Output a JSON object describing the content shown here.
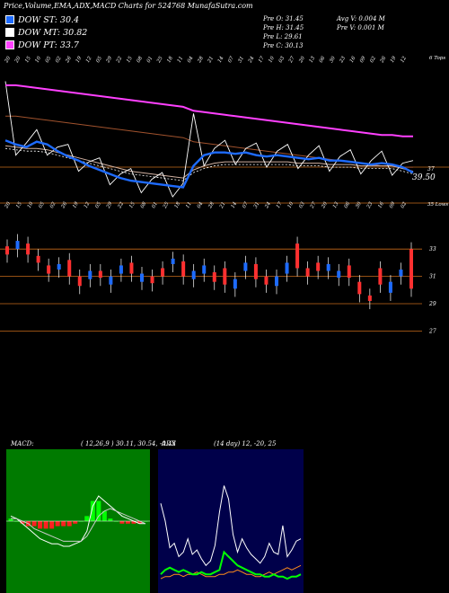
{
  "header": {
    "title": "Price,Volume,EMA,ADX,MACD Charts for 524768  MunafaSutra.com"
  },
  "legend": [
    {
      "label": "DOW ST: 30.4",
      "color": "#1e6bff"
    },
    {
      "label": "DOW MT: 30.82",
      "color": "#ffffff"
    },
    {
      "label": "DOW PT: 33.7",
      "color": "#ff40ff"
    }
  ],
  "info": {
    "prev_open": "Pre   O: 31.45",
    "prev_high": "Pre   H: 31.45",
    "prev_low": "Pre   L: 29.61",
    "prev_close": "Pre   C: 30.13",
    "avg_volume": "Avg V: 0.004  M",
    "prev_volume": "Pre   V: 0.001 M"
  },
  "colors": {
    "price": "#ffffff",
    "ema_short": "#1e6bff",
    "ema_long": "#ff40ff",
    "ema_mid": "#d0b0a0",
    "grid": "#c56a1a",
    "candle_up": "#1e6bff",
    "candle_down": "#ff3030",
    "macd_bg": "#007a00",
    "adx_bg": "#00004a",
    "adx_green": "#00ff00",
    "adx_orange": "#ff8c1a"
  },
  "chart_data": [
    {
      "type": "line",
      "name": "price-ema-panel",
      "top_tick_labels": [
        "20",
        "20",
        "15",
        "10",
        "05",
        "02",
        "26",
        "19",
        "12",
        "05",
        "29",
        "22",
        "15",
        "08",
        "01",
        "25",
        "18",
        "11",
        "04",
        "28",
        "21",
        "14",
        "07",
        "31",
        "24",
        "17",
        "10",
        "03",
        "27",
        "20",
        "13",
        "06",
        "30",
        "23",
        "16",
        "09",
        "02",
        "26",
        "19",
        "12"
      ],
      "bottom_tick_labels": [
        "20",
        "15",
        "10",
        "05",
        "02",
        "26",
        "19",
        "12",
        "05",
        "29",
        "22",
        "15",
        "08",
        "01",
        "25",
        "18",
        "11",
        "04",
        "28",
        "21",
        "14",
        "07",
        "31",
        "24",
        "17",
        "10",
        "03",
        "27",
        "20",
        "13",
        "06",
        "30",
        "23",
        "16",
        "09",
        "02"
      ],
      "corner_label_top": "6 Tops",
      "corner_label_bottom": "35 Lows",
      "last_price_label": "39.50",
      "right_tick_label": "37",
      "series": [
        {
          "name": "DOW ST",
          "values": [
            33.4,
            33.1,
            32.9,
            33.3,
            33.1,
            32.6,
            32.2,
            31.9,
            31.5,
            31.2,
            30.9,
            30.6,
            30.4,
            30.3,
            30.2,
            30.1,
            30.0,
            29.9,
            31.5,
            32.3,
            32.5,
            32.5,
            32.4,
            32.5,
            32.3,
            32.2,
            32.3,
            32.2,
            32.1,
            32.0,
            32.1,
            31.9,
            31.9,
            31.8,
            31.7,
            31.6,
            31.7,
            31.6,
            31.4,
            31.0
          ]
        },
        {
          "name": "DOW MT",
          "values": [
            33.0,
            32.9,
            32.8,
            32.8,
            32.7,
            32.5,
            32.3,
            32.1,
            31.9,
            31.7,
            31.5,
            31.3,
            31.1,
            31.0,
            30.9,
            30.8,
            30.7,
            30.6,
            31.2,
            31.5,
            31.7,
            31.8,
            31.8,
            31.8,
            31.8,
            31.8,
            31.8,
            31.8,
            31.7,
            31.7,
            31.7,
            31.6,
            31.6,
            31.6,
            31.5,
            31.5,
            31.5,
            31.5,
            31.3,
            31.1
          ]
        },
        {
          "name": "DOW PT",
          "values": [
            37.5,
            37.5,
            37.4,
            37.3,
            37.2,
            37.1,
            37.0,
            36.9,
            36.8,
            36.7,
            36.6,
            36.5,
            36.4,
            36.3,
            36.2,
            36.1,
            36.0,
            35.9,
            35.6,
            35.5,
            35.4,
            35.3,
            35.2,
            35.1,
            35.0,
            34.9,
            34.8,
            34.7,
            34.6,
            34.5,
            34.4,
            34.3,
            34.2,
            34.1,
            34.0,
            33.9,
            33.8,
            33.8,
            33.7,
            33.7
          ]
        }
      ]
    },
    {
      "type": "bar",
      "name": "candles-panel",
      "y_ticks": [
        "33",
        "31",
        "29",
        "27"
      ],
      "opens": [
        33.2,
        33.0,
        33.4,
        32.5,
        31.8,
        31.5,
        32.2,
        31.0,
        30.8,
        31.4,
        30.4,
        31.2,
        32.0,
        30.6,
        31.0,
        31.6,
        31.9,
        32.1,
        30.8,
        31.2,
        31.3,
        31.6,
        30.1,
        31.4,
        31.9,
        31.0,
        30.3,
        31.2,
        33.4,
        31.6,
        32.0,
        31.4,
        30.9,
        31.8,
        30.6,
        29.6,
        31.6,
        29.8,
        31.0,
        33.0
      ],
      "closes": [
        32.6,
        33.6,
        32.6,
        32.0,
        31.2,
        31.9,
        31.0,
        30.3,
        31.4,
        30.9,
        31.0,
        31.8,
        31.2,
        31.2,
        30.5,
        31.0,
        32.3,
        31.0,
        31.4,
        31.8,
        30.6,
        30.4,
        30.8,
        32.0,
        30.8,
        30.4,
        31.0,
        32.0,
        31.6,
        31.0,
        31.4,
        31.9,
        31.4,
        30.9,
        29.7,
        29.2,
        30.4,
        30.6,
        31.5,
        30.1
      ]
    },
    {
      "type": "line",
      "name": "macd-panel",
      "title": "MACD:",
      "params": "( 12,26,9 ) 30.11, 30.54, -0.43",
      "series": [
        {
          "name": "MACD",
          "values": [
            0.2,
            0.1,
            -0.1,
            -0.3,
            -0.5,
            -0.7,
            -0.8,
            -0.9,
            -0.9,
            -1.0,
            -1.0,
            -0.9,
            -0.8,
            -0.4,
            0.6,
            1.0,
            0.8,
            0.6,
            0.4,
            0.2,
            0.1,
            0.0,
            -0.1,
            -0.1
          ]
        },
        {
          "name": "Signal",
          "values": [
            0.1,
            0.1,
            0.0,
            -0.1,
            -0.3,
            -0.4,
            -0.5,
            -0.6,
            -0.7,
            -0.8,
            -0.8,
            -0.8,
            -0.8,
            -0.6,
            -0.2,
            0.2,
            0.4,
            0.5,
            0.4,
            0.3,
            0.2,
            0.1,
            0.0,
            -0.1
          ]
        },
        {
          "name": "Histogram",
          "values": [
            0.1,
            0.0,
            -0.1,
            -0.2,
            -0.2,
            -0.3,
            -0.3,
            -0.3,
            -0.2,
            -0.2,
            -0.2,
            -0.1,
            0.0,
            0.2,
            0.8,
            0.8,
            0.4,
            0.1,
            0.0,
            -0.1,
            -0.1,
            -0.1,
            -0.1,
            0.0
          ]
        }
      ]
    },
    {
      "type": "line",
      "name": "adx-panel",
      "title": "ADX",
      "params": "(14  day) 12, -20,  25",
      "series": [
        {
          "name": "ADX",
          "values": [
            38,
            30,
            18,
            20,
            14,
            16,
            22,
            15,
            17,
            13,
            10,
            12,
            19,
            34,
            46,
            40,
            24,
            16,
            22,
            18,
            15,
            13,
            11,
            14,
            20,
            16,
            15,
            28,
            14,
            17,
            21,
            22
          ]
        },
        {
          "name": "+DI",
          "values": [
            6,
            8,
            9,
            8,
            7,
            8,
            7,
            6,
            6,
            7,
            6,
            6,
            7,
            8,
            16,
            14,
            12,
            10,
            9,
            8,
            7,
            6,
            6,
            5,
            5,
            6,
            5,
            5,
            4,
            5,
            5,
            6
          ]
        },
        {
          "name": "-DI",
          "values": [
            4,
            5,
            5,
            6,
            6,
            5,
            6,
            6,
            7,
            6,
            5,
            5,
            5,
            6,
            6,
            7,
            7,
            8,
            7,
            6,
            6,
            5,
            5,
            6,
            7,
            6,
            7,
            8,
            9,
            8,
            9,
            10
          ]
        }
      ]
    }
  ]
}
